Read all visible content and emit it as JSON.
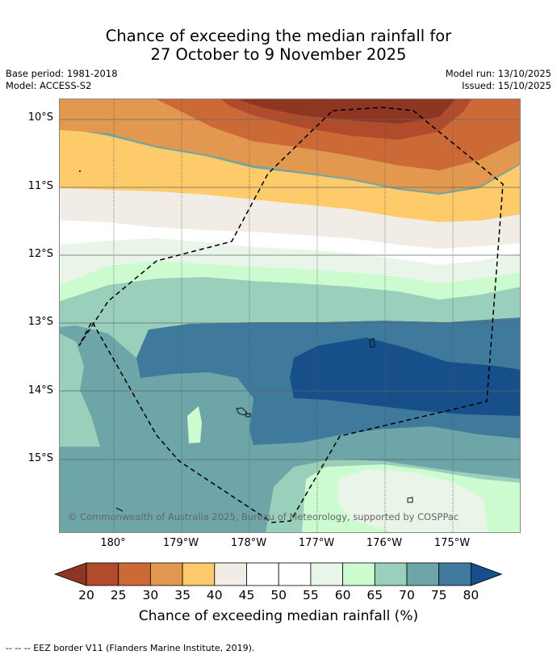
{
  "title": {
    "line1": "Chance of exceeding the median rainfall for",
    "line2": "27 October to 9 November 2025"
  },
  "meta": {
    "base_period": "Base period: 1981-2018",
    "model": "Model: ACCESS-S2",
    "model_run": "Model run: 13/10/2025",
    "issued": "Issued: 15/10/2025"
  },
  "map": {
    "lat_labels": [
      "10°S",
      "11°S",
      "12°S",
      "13°S",
      "14°S",
      "15°S"
    ],
    "lon_labels": [
      "180°",
      "179°W",
      "178°W",
      "177°W",
      "176°W",
      "175°W"
    ],
    "copyright": "© Commonwealth of Australia 2025, Bureau of Meteorology, supported by COSPPac"
  },
  "colorbar": {
    "ticks": [
      "20",
      "25",
      "30",
      "35",
      "40",
      "45",
      "50",
      "55",
      "60",
      "65",
      "70",
      "75",
      "80"
    ],
    "title": "Chance of exceeding median rainfall (%)",
    "colors": [
      "#8f3622",
      "#b04b2b",
      "#cc6a37",
      "#e2994f",
      "#fecb6a",
      "#f1ece6",
      "#ffffff",
      "#ffffff",
      "#e9f5e9",
      "#ccfbd0",
      "#9ad0bb",
      "#6ea5a8",
      "#3f7a9c",
      "#164f8a"
    ]
  },
  "footer": {
    "legend": "--  --  -- EEZ border V11 (Flanders Marine Institute, 2019)."
  }
}
